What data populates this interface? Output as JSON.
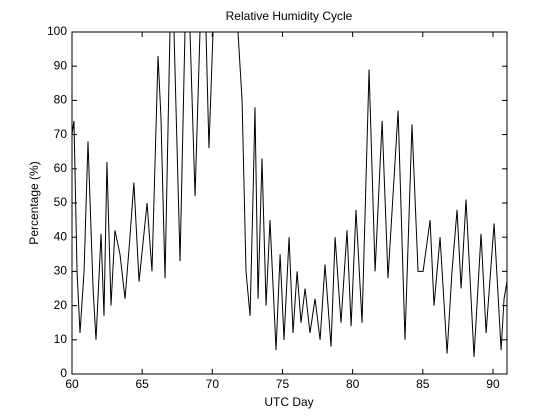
{
  "chart_data": {
    "type": "line",
    "title": "Relative Humidity Cycle",
    "xlabel": "UTC Day",
    "ylabel": "Percentage (%)",
    "xlim": [
      60,
      91
    ],
    "ylim": [
      0,
      100
    ],
    "xticks": [
      60,
      65,
      70,
      75,
      80,
      85,
      90
    ],
    "yticks": [
      0,
      10,
      20,
      30,
      40,
      50,
      60,
      70,
      80,
      90,
      100
    ],
    "grid": false,
    "series": [
      {
        "color": "#000000",
        "x": [
          60.0,
          60.14,
          60.36,
          60.57,
          60.86,
          61.14,
          61.5,
          61.71,
          62.07,
          62.28,
          62.49,
          62.78,
          63.06,
          63.42,
          63.78,
          64.13,
          64.41,
          64.78,
          65.35,
          65.7,
          66.13,
          66.34,
          66.63,
          66.98,
          67.27,
          67.7,
          68.05,
          68.41,
          68.77,
          69.12,
          69.55,
          69.76,
          70.05,
          71.83,
          72.12,
          72.4,
          72.69,
          72.9,
          73.04,
          73.26,
          73.54,
          73.83,
          74.11,
          74.54,
          74.83,
          75.11,
          75.47,
          75.75,
          76.04,
          76.32,
          76.61,
          76.96,
          77.32,
          77.68,
          78.03,
          78.46,
          78.75,
          79.17,
          79.6,
          79.89,
          80.24,
          80.67,
          81.17,
          81.6,
          82.1,
          82.52,
          83.24,
          83.73,
          84.23,
          84.66,
          85.02,
          85.52,
          85.8,
          86.23,
          86.73,
          87.08,
          87.44,
          87.73,
          88.08,
          88.65,
          89.15,
          89.51,
          90.08,
          90.58,
          90.79,
          91.0
        ],
        "values": [
          70,
          74,
          30,
          12,
          30,
          68,
          25,
          10,
          41,
          17,
          62,
          20,
          42,
          35,
          22,
          40,
          56,
          27,
          50,
          30,
          93,
          75,
          28,
          100,
          100,
          33,
          100,
          100,
          52,
          100,
          100,
          66,
          100,
          100,
          80,
          30,
          17,
          52,
          78,
          22,
          63,
          20,
          45,
          7,
          35,
          10,
          40,
          12,
          30,
          15,
          25,
          12,
          22,
          10,
          32,
          8,
          40,
          15,
          42,
          14,
          48,
          15,
          89,
          30,
          74,
          28,
          77,
          10,
          73,
          30,
          30,
          45,
          20,
          40,
          6,
          30,
          48,
          25,
          51,
          5,
          41,
          12,
          44,
          7,
          22,
          27
        ]
      }
    ]
  }
}
